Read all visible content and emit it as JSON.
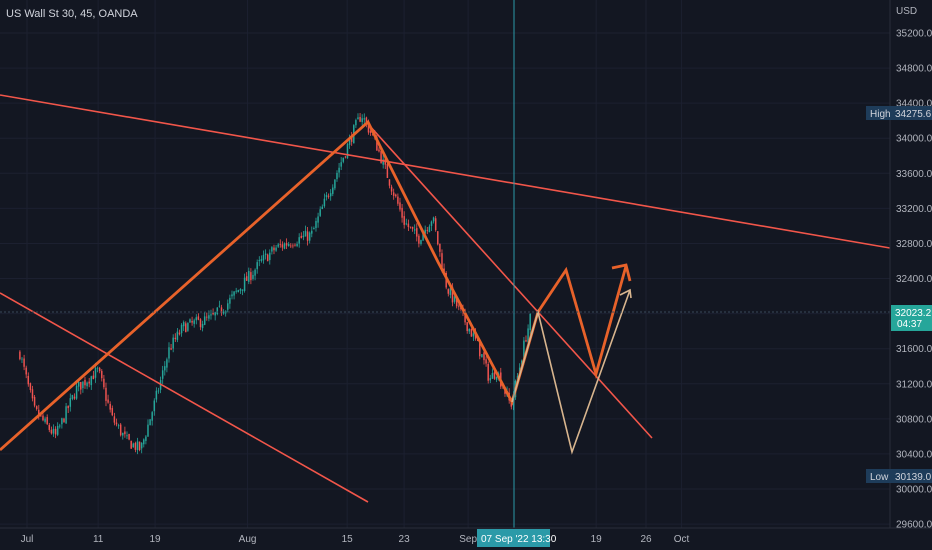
{
  "header": {
    "title": "US Wall St 30, 45, OANDA",
    "currency": "USD"
  },
  "colors": {
    "background": "#131722",
    "up_candle": "#26a69a",
    "down_candle": "#ef5350",
    "trendline": "#f2564a",
    "path": "#e8622a",
    "projection": "#d8b58e",
    "crosshair": "#2b9aa8",
    "badge_bg": "#1e3c5a"
  },
  "chart_data": {
    "type": "candlestick",
    "symbol": "US Wall St 30",
    "interval": "45",
    "source": "OANDA",
    "ylim": [
      29600,
      35400
    ],
    "y_ticks": [
      29600,
      30000,
      30400,
      30800,
      31200,
      31600,
      32000,
      32400,
      32800,
      33200,
      33600,
      34000,
      34400,
      34800,
      35200
    ],
    "y_tick_labels": [
      "29600.0",
      "30000.0",
      "30400.0",
      "30800.0",
      "31200.0",
      "31600.0",
      "32000.0",
      "32400.0",
      "32800.0",
      "33200.0",
      "33600.0",
      "34000.0",
      "34400.0",
      "34800.0",
      "35200.0"
    ],
    "x_labels": [
      "Jul",
      "11",
      "19",
      "Aug",
      "15",
      "23",
      "Sep",
      "19",
      "26",
      "Oct"
    ],
    "x_dates": [
      "2022-07-01",
      "2022-07-11",
      "2022-07-19",
      "2022-08-01",
      "2022-08-15",
      "2022-08-23",
      "2022-09-01",
      "2022-09-19",
      "2022-09-26",
      "2022-10-01"
    ],
    "price_path": [
      [
        "2022-06-30",
        31550
      ],
      [
        "2022-07-02",
        30900
      ],
      [
        "2022-07-05",
        30600
      ],
      [
        "2022-07-08",
        31150
      ],
      [
        "2022-07-11",
        31350
      ],
      [
        "2022-07-13",
        30800
      ],
      [
        "2022-07-15",
        30550
      ],
      [
        "2022-07-17",
        30450
      ],
      [
        "2022-07-19",
        31000
      ],
      [
        "2022-07-21",
        31600
      ],
      [
        "2022-07-23",
        31850
      ],
      [
        "2022-07-27",
        31950
      ],
      [
        "2022-07-29",
        32100
      ],
      [
        "2022-08-01",
        32400
      ],
      [
        "2022-08-03",
        32600
      ],
      [
        "2022-08-05",
        32750
      ],
      [
        "2022-08-08",
        32850
      ],
      [
        "2022-08-10",
        32900
      ],
      [
        "2022-08-12",
        33300
      ],
      [
        "2022-08-14",
        33700
      ],
      [
        "2022-08-16",
        34100
      ],
      [
        "2022-08-17",
        34275
      ],
      [
        "2022-08-19",
        33950
      ],
      [
        "2022-08-21",
        33500
      ],
      [
        "2022-08-23",
        33050
      ],
      [
        "2022-08-25",
        32850
      ],
      [
        "2022-08-27",
        33100
      ],
      [
        "2022-08-29",
        32300
      ],
      [
        "2022-08-31",
        32000
      ],
      [
        "2022-09-02",
        31700
      ],
      [
        "2022-09-03",
        31500
      ],
      [
        "2022-09-04",
        31250
      ],
      [
        "2022-09-05",
        31350
      ],
      [
        "2022-09-07",
        30950
      ],
      [
        "2022-09-08",
        31300
      ],
      [
        "2022-09-09",
        31700
      ],
      [
        "2022-09-10",
        32023
      ]
    ],
    "annotations": {
      "high": {
        "label": "High",
        "value": "34275.6"
      },
      "low": {
        "label": "Low",
        "value": "30139.0"
      },
      "current_price": {
        "value": "32023.2",
        "countdown": "04:37"
      },
      "crosshair_date": "07 Sep '22  13:30"
    }
  }
}
